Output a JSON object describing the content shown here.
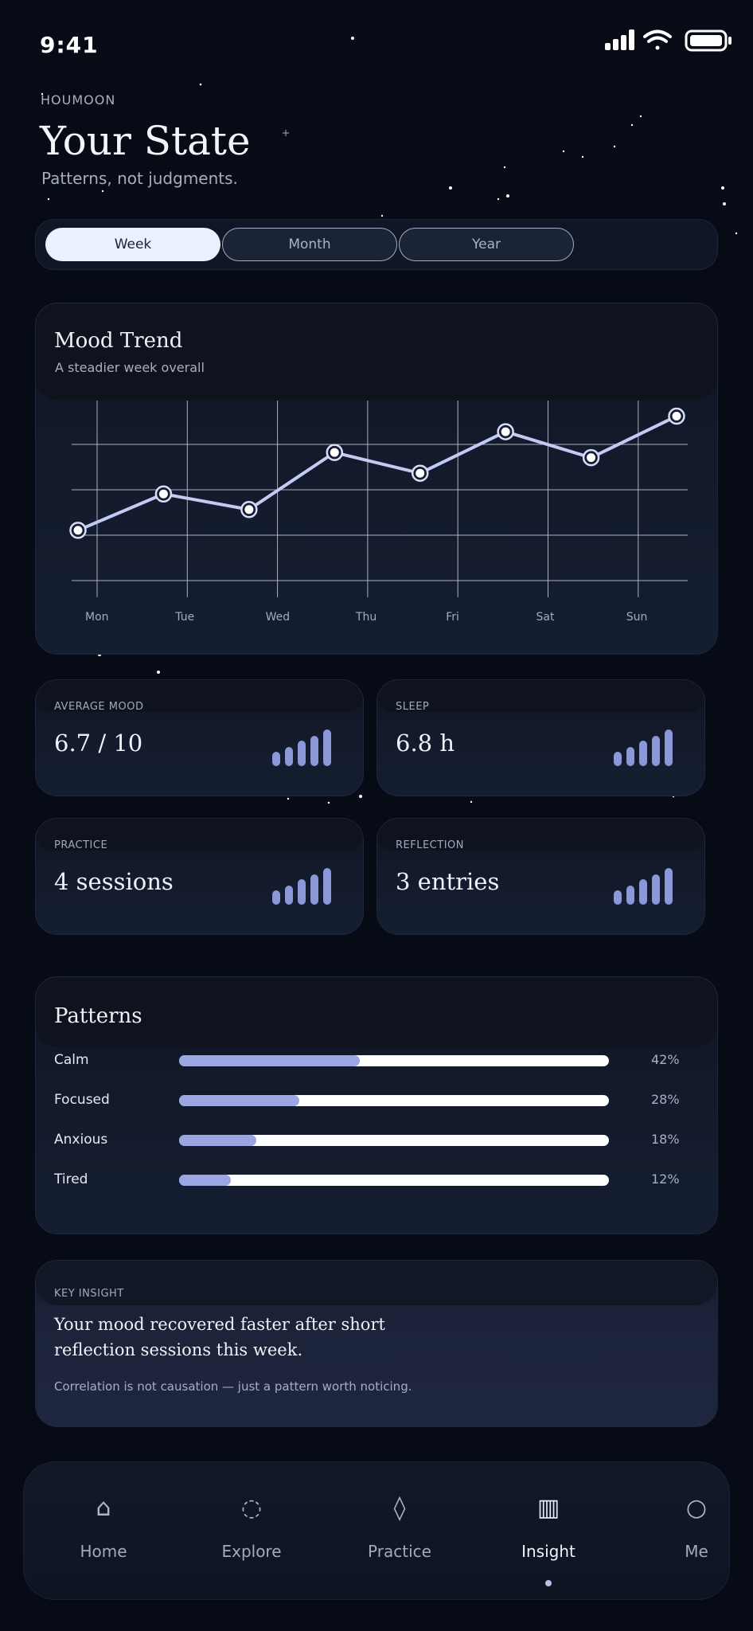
{
  "status": {
    "time": "9:41"
  },
  "header": {
    "brand": "HOUMOON",
    "title": "Your State",
    "subtitle": "Patterns, not judgments."
  },
  "segments": {
    "items": [
      "Week",
      "Month",
      "Year"
    ],
    "selected": "Week"
  },
  "mood_card": {
    "title": "Mood Trend",
    "subtitle": "A steadier week overall"
  },
  "chart_data": {
    "type": "line",
    "categories": [
      "Mon",
      "Tue",
      "Wed",
      "Thu",
      "Fri",
      "Sat",
      "Sun"
    ],
    "x": [
      "Mon",
      "Mon–Tue",
      "Tue–Wed",
      "Thu",
      "Thu–Fri",
      "Fri–Sat",
      "Sat–Sun",
      "Sun"
    ],
    "values": [
      5.5,
      6.2,
      5.9,
      7.0,
      6.6,
      7.4,
      6.9,
      7.7
    ],
    "ylim": [
      4.5,
      8.0
    ],
    "grid": true,
    "line_color": "#c3cbf3"
  },
  "stats": [
    {
      "label": "AVERAGE MOOD",
      "value": "6.7 / 10"
    },
    {
      "label": "SLEEP",
      "value": "6.8 h"
    },
    {
      "label": "PRACTICE",
      "value": "4 sessions"
    },
    {
      "label": "REFLECTION",
      "value": "3 entries"
    }
  ],
  "patterns": {
    "title": "Patterns",
    "items": [
      {
        "label": "Calm",
        "pct_label": "42%",
        "value": 0.42
      },
      {
        "label": "Focused",
        "pct_label": "28%",
        "value": 0.28
      },
      {
        "label": "Anxious",
        "pct_label": "18%",
        "value": 0.18
      },
      {
        "label": "Tired",
        "pct_label": "12%",
        "value": 0.12
      }
    ]
  },
  "insight": {
    "label": "KEY INSIGHT",
    "line1": "Your mood recovered faster after short",
    "line2": "reflection sessions this week.",
    "note": "Correlation is not causation — just a pattern worth noticing."
  },
  "nav": {
    "items": [
      {
        "label": "Home",
        "icon": "home-icon",
        "glyph": "⌂"
      },
      {
        "label": "Explore",
        "icon": "explore-icon",
        "glyph": "◌"
      },
      {
        "label": "Practice",
        "icon": "practice-icon",
        "glyph": "◊"
      },
      {
        "label": "Insight",
        "icon": "insight-icon",
        "glyph": "▥"
      },
      {
        "label": "Me",
        "icon": "me-icon",
        "glyph": "○"
      }
    ],
    "active": "Insight"
  },
  "colors": {
    "accent": "#8b97d8",
    "background": "#070b15",
    "card": "#131b2d"
  }
}
